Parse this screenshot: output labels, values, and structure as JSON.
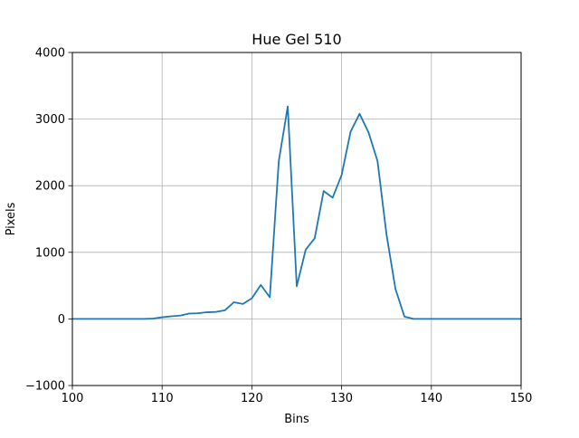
{
  "chart_data": {
    "type": "line",
    "title": "Hue Gel 510",
    "xlabel": "Bins",
    "ylabel": "Pixels",
    "xlim": [
      100,
      150
    ],
    "ylim": [
      -1000,
      4000
    ],
    "xticks": [
      100,
      110,
      120,
      130,
      140,
      150
    ],
    "yticks": [
      -1000,
      0,
      1000,
      2000,
      3000,
      4000
    ],
    "xtick_labels": [
      "100",
      "110",
      "120",
      "130",
      "140",
      "150"
    ],
    "ytick_labels": [
      "−1000",
      "0",
      "1000",
      "2000",
      "3000",
      "4000"
    ],
    "grid": true,
    "series": [
      {
        "color": "#1f77b4",
        "x": [
          100,
          101,
          102,
          103,
          104,
          105,
          106,
          107,
          108,
          109,
          110,
          111,
          112,
          113,
          114,
          115,
          116,
          117,
          118,
          119,
          120,
          121,
          122,
          123,
          124,
          125,
          126,
          127,
          128,
          129,
          130,
          131,
          132,
          133,
          134,
          135,
          136,
          137,
          138,
          139,
          140,
          141,
          142,
          143,
          144,
          145,
          146,
          147,
          148,
          149,
          150
        ],
        "y": [
          0,
          0,
          0,
          0,
          0,
          0,
          0,
          0,
          0,
          5,
          25,
          40,
          50,
          80,
          85,
          100,
          105,
          130,
          250,
          225,
          310,
          510,
          325,
          2370,
          3190,
          490,
          1040,
          1210,
          1920,
          1820,
          2160,
          2810,
          3080,
          2800,
          2370,
          1270,
          450,
          35,
          0,
          0,
          0,
          0,
          0,
          0,
          0,
          0,
          0,
          0,
          0,
          0,
          0
        ]
      }
    ]
  }
}
